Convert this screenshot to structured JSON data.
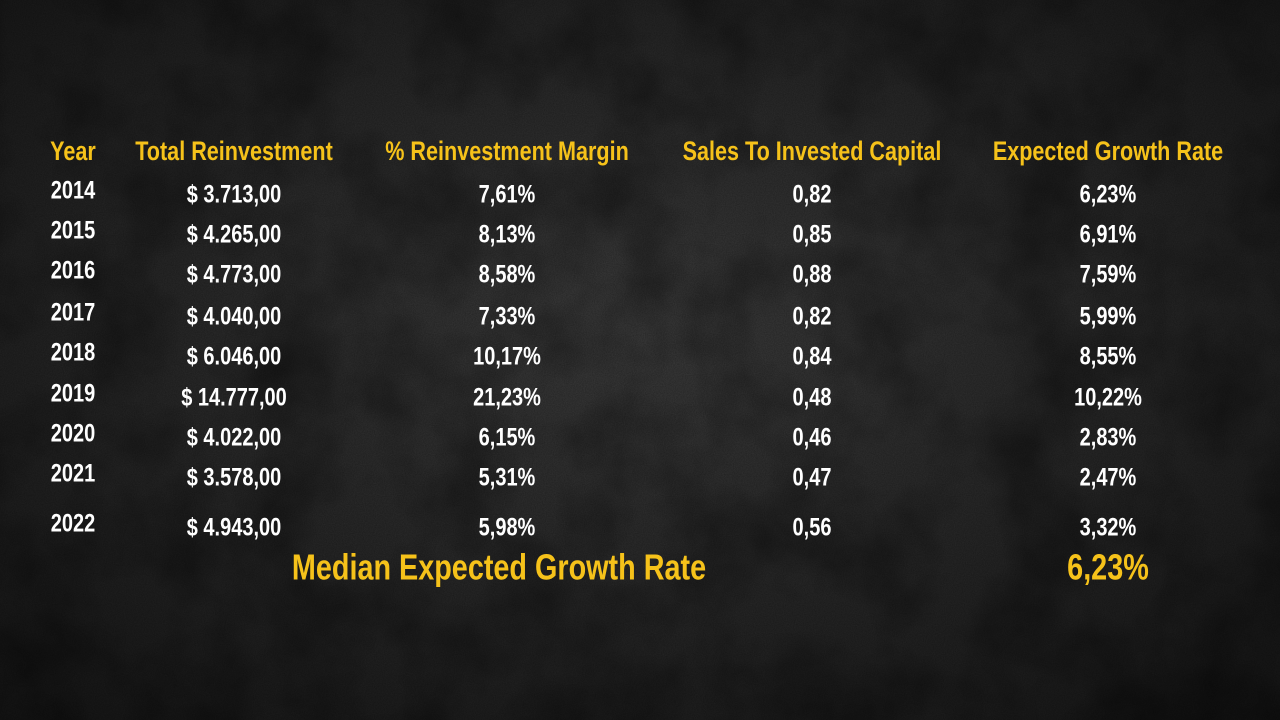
{
  "table": {
    "headers": [
      "Year",
      "Total Reinvestment",
      "% Reinvestment Margin",
      "Sales To Invested Capital",
      "Expected Growth Rate"
    ],
    "rows": [
      [
        "2014",
        "$ 3.713,00",
        "7,61%",
        "0,82",
        "6,23%"
      ],
      [
        "2015",
        "$ 4.265,00",
        "8,13%",
        "0,85",
        "6,91%"
      ],
      [
        "2016",
        "$ 4.773,00",
        "8,58%",
        "0,88",
        "7,59%"
      ],
      [
        "2017",
        "$ 4.040,00",
        "7,33%",
        "0,82",
        "5,99%"
      ],
      [
        "2018",
        "$ 6.046,00",
        "10,17%",
        "0,84",
        "8,55%"
      ],
      [
        "2019",
        "$ 14.777,00",
        "21,23%",
        "0,48",
        "10,22%"
      ],
      [
        "2020",
        "$ 4.022,00",
        "6,15%",
        "0,46",
        "2,83%"
      ],
      [
        "2021",
        "$ 3.578,00",
        "5,31%",
        "0,47",
        "2,47%"
      ],
      [
        "2022",
        "$ 4.943,00",
        "5,98%",
        "0,56",
        "3,32%"
      ]
    ],
    "summary": {
      "label": "Median Expected Growth Rate",
      "value": "6,23%"
    }
  }
}
